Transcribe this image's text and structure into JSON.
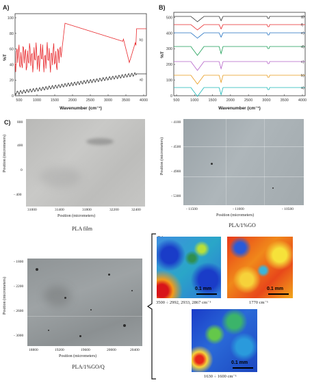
{
  "panelA": {
    "label": "A)",
    "ylabel": "%T",
    "xlabel": "Wavenumber (cm⁻¹)",
    "xticks": [
      "500",
      "1000",
      "1500",
      "2000",
      "2500",
      "3000",
      "3500",
      "4000"
    ],
    "yticks": [
      "0",
      "20",
      "40",
      "60",
      "80",
      "100"
    ],
    "curve_labels": [
      "b)",
      "a)"
    ],
    "colors": {
      "b": "#e8262a",
      "a": "#2b2b2b"
    }
  },
  "panelB": {
    "label": "B)",
    "ylabel": "%T",
    "xlabel": "Wavenumber (cm⁻¹)",
    "xticks": [
      "500",
      "1000",
      "1500",
      "2000",
      "2500",
      "3000",
      "3500",
      "4000"
    ],
    "yticks": [
      "0",
      "100",
      "200",
      "300",
      "400",
      "500"
    ],
    "curve_labels": [
      "g)",
      "f)",
      "e)",
      "d)",
      "c)",
      "b)",
      "a)"
    ],
    "colors": [
      "#333333",
      "#e8262a",
      "#1f6fc0",
      "#1a9e55",
      "#b461c8",
      "#e89a1a",
      "#18b6b6"
    ]
  },
  "panelC": {
    "label": "C)",
    "images": [
      {
        "caption": "PLA film",
        "ylabel": "Position (micrometers)",
        "xlabel": "Position (micrometers)",
        "yticks": [
          "800",
          "400",
          "0",
          "- 400"
        ],
        "xticks": [
          "31000",
          "31400",
          "31800",
          "32200",
          "32400"
        ]
      },
      {
        "caption": "PLA/1%GO",
        "ylabel": "Position (micrometers)",
        "xlabel": "Position (micrometers)",
        "yticks": [
          "- 4100",
          "- 4500",
          "- 4900",
          "- 5300"
        ],
        "xticks": [
          "- 11500",
          "- 11000",
          "- 10500"
        ]
      },
      {
        "caption": "PLA/1%GO/Q",
        "ylabel": "Position (micrometers)",
        "xlabel": "Position (micrometers)",
        "yticks": [
          "- 1800",
          "- 2200",
          "- 2600",
          "- 3000"
        ],
        "xticks": [
          "18800",
          "19200",
          "19600",
          "20000",
          "20400"
        ]
      }
    ]
  },
  "panelD": {
    "label": "D)",
    "maps": [
      {
        "caption": "3500 ÷ 2992, 2933, 2867 cm⁻¹",
        "scale": "0.1 mm"
      },
      {
        "caption": "1770 cm⁻¹",
        "scale": "0.1 mm"
      },
      {
        "caption": "1630 ÷ 1600 cm⁻¹",
        "scale": "0.1 mm"
      }
    ]
  }
}
